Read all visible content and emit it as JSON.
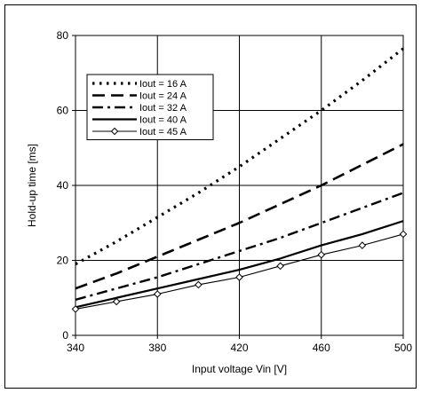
{
  "chart_data": {
    "type": "line",
    "title": "",
    "xlabel": "Input voltage Vin [V]",
    "ylabel": "Hold-up time [ms]",
    "xlim": [
      340,
      500
    ],
    "ylim": [
      0,
      80
    ],
    "xticks": [
      340,
      380,
      420,
      460,
      500
    ],
    "yticks": [
      0,
      20,
      40,
      60,
      80
    ],
    "grid": true,
    "legend_position": "top-left",
    "series": [
      {
        "name": "Iout = 16 A",
        "style": "dotted",
        "marker": "none",
        "x": [
          340,
          360,
          380,
          400,
          420,
          440,
          460,
          480,
          500
        ],
        "y": [
          19,
          25,
          31.5,
          38,
          45,
          52.5,
          60,
          68,
          76.5
        ]
      },
      {
        "name": "Iout = 24 A",
        "style": "dashed",
        "marker": "none",
        "x": [
          340,
          360,
          380,
          400,
          420,
          440,
          460,
          480,
          500
        ],
        "y": [
          12.5,
          16.5,
          21,
          25.5,
          30,
          35,
          40,
          45.5,
          51
        ]
      },
      {
        "name": "Iout = 32 A",
        "style": "dash-dot",
        "marker": "none",
        "x": [
          340,
          360,
          380,
          400,
          420,
          440,
          460,
          480,
          500
        ],
        "y": [
          9.5,
          12.5,
          15.5,
          19,
          22.5,
          26,
          30,
          34,
          38
        ]
      },
      {
        "name": "Iout = 40 A",
        "style": "solid",
        "marker": "none",
        "x": [
          340,
          360,
          380,
          400,
          420,
          440,
          460,
          480,
          500
        ],
        "y": [
          7.5,
          10,
          12.5,
          15,
          17.5,
          20.5,
          24,
          27,
          30.5
        ]
      },
      {
        "name": "Iout = 45 A",
        "style": "solid-thin",
        "marker": "diamond",
        "x": [
          340,
          360,
          380,
          400,
          420,
          440,
          460,
          480,
          500
        ],
        "y": [
          7,
          9,
          11,
          13.5,
          15.5,
          18.5,
          21.5,
          24,
          27
        ]
      }
    ]
  }
}
